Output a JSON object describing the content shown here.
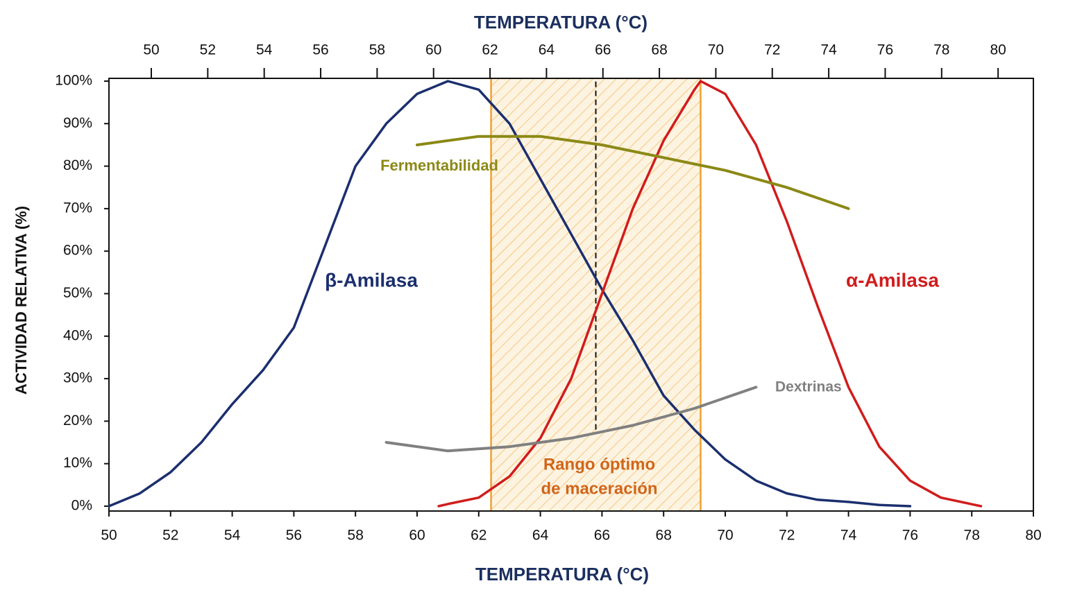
{
  "chart_data": {
    "type": "line",
    "x_label": "TEMPERATURA (°C)",
    "top_x_label": "TEMPERATURA (°C)",
    "y_label": "ACTIVIDAD RELATIVA (%)",
    "xlim": [
      50,
      80
    ],
    "xticks": [
      50,
      52,
      54,
      56,
      58,
      60,
      62,
      64,
      66,
      68,
      70,
      72,
      74,
      76,
      78,
      80
    ],
    "top_xlim": [
      48.5,
      81.25
    ],
    "top_xticks": [
      50,
      52,
      54,
      56,
      58,
      60,
      62,
      64,
      66,
      68,
      70,
      72,
      74,
      76,
      78,
      80
    ],
    "ylim": [
      0,
      100
    ],
    "yticks": [
      {
        "value": 0,
        "label": "0%"
      },
      {
        "value": 10,
        "label": "10%"
      },
      {
        "value": 20,
        "label": "20%"
      },
      {
        "value": 30,
        "label": "30%"
      },
      {
        "value": 40,
        "label": "40%"
      },
      {
        "value": 50,
        "label": "50%"
      },
      {
        "value": 60,
        "label": "60%"
      },
      {
        "value": 70,
        "label": "70%"
      },
      {
        "value": 80,
        "label": "80%"
      },
      {
        "value": 90,
        "label": "90%"
      },
      {
        "value": 100,
        "label": "100%"
      }
    ],
    "series": [
      {
        "name": "β-Amilasa",
        "color": "#1b2f6e",
        "x": [
          50,
          51,
          52,
          53,
          54,
          55,
          56,
          57,
          58,
          59,
          60,
          61,
          62,
          63,
          64,
          65,
          66,
          67,
          68,
          69,
          70,
          71,
          72,
          73,
          74,
          75,
          76
        ],
        "values": [
          0,
          3,
          8,
          15,
          24,
          32,
          42,
          61,
          80,
          90,
          97,
          100,
          98,
          90,
          77,
          64,
          51,
          39,
          26,
          18,
          11,
          6,
          3,
          1.5,
          1,
          0.3,
          0
        ]
      },
      {
        "name": "α-Amilasa",
        "color": "#d01c1c",
        "x": [
          60.7,
          61,
          62,
          63,
          64,
          65,
          66,
          67,
          68,
          69,
          69.2,
          70,
          71,
          72,
          73,
          74,
          75,
          76,
          77,
          78.3
        ],
        "values": [
          0,
          0.5,
          2,
          7,
          16,
          30,
          50,
          70,
          86,
          98,
          100,
          97,
          85,
          67,
          47,
          28,
          14,
          6,
          2,
          0
        ]
      },
      {
        "name": "Fermentabilidad",
        "color": "#8b8916",
        "x": [
          60,
          62,
          64,
          66,
          68,
          70,
          72,
          74
        ],
        "values": [
          85,
          87,
          87,
          85,
          82,
          79,
          75,
          70
        ]
      },
      {
        "name": "Dextrinas",
        "color": "#808080",
        "x": [
          59,
          61,
          63,
          65,
          67,
          69,
          71
        ],
        "values": [
          15,
          13,
          14,
          16,
          19,
          23,
          28
        ]
      }
    ],
    "optimal_range": {
      "x": [
        62.4,
        69.2
      ],
      "label_lines": [
        "Rango óptimo",
        "de maceración"
      ],
      "color": "#f0a030"
    },
    "reference_line": {
      "x": 65.8,
      "y": [
        18,
        100
      ]
    }
  }
}
